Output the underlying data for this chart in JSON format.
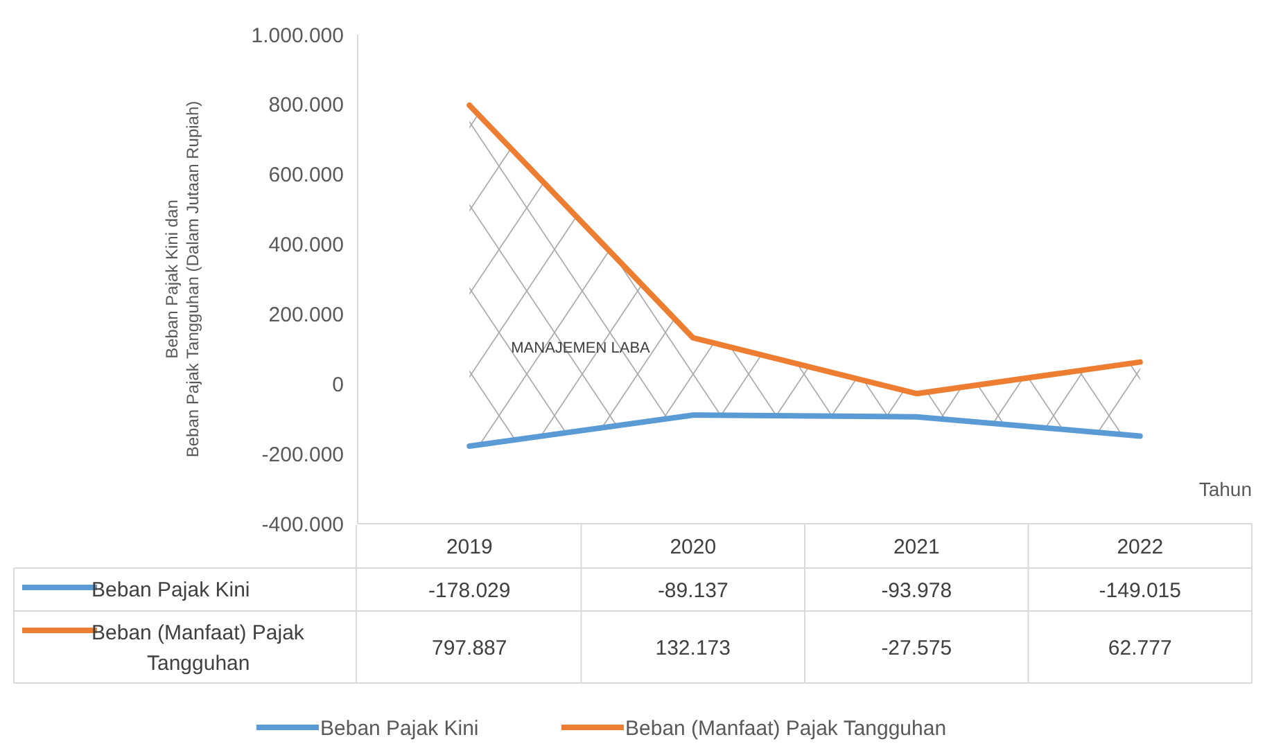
{
  "chart_data": {
    "type": "line",
    "ylabel": "Beban Pajak Kini dan\nBeban Pajak Tangguhan (Dalam Jutaan Rupiah)",
    "xlabel": "Tahun",
    "categories": [
      "2019",
      "2020",
      "2021",
      "2022"
    ],
    "ylim": [
      -400000,
      1000000
    ],
    "yticks": [
      {
        "value": -400000,
        "label": "-400.000"
      },
      {
        "value": -200000,
        "label": "-200.000"
      },
      {
        "value": 0,
        "label": "0"
      },
      {
        "value": 200000,
        "label": "200.000"
      },
      {
        "value": 400000,
        "label": "400.000"
      },
      {
        "value": 600000,
        "label": "600.000"
      },
      {
        "value": 800000,
        "label": "800.000"
      },
      {
        "value": 1000000,
        "label": "1.000.000"
      }
    ],
    "series": [
      {
        "name": "Beban Pajak Kini",
        "color": "#5b9bd5",
        "values": [
          -178029,
          -89137,
          -93978,
          -149015
        ],
        "value_labels": [
          "-178.029",
          "-89.137",
          "-93.978",
          "-149.015"
        ]
      },
      {
        "name": "Beban (Manfaat) Pajak Tangguhan",
        "color": "#ed7d31",
        "values": [
          797887,
          132173,
          -27575,
          62777
        ],
        "value_labels": [
          "797.887",
          "132.173",
          "-27.575",
          "62.777"
        ]
      }
    ],
    "annotations": [
      "MANAJEMEN LABA"
    ],
    "legend": "bottom",
    "marker": "none",
    "line_style": "solid"
  }
}
